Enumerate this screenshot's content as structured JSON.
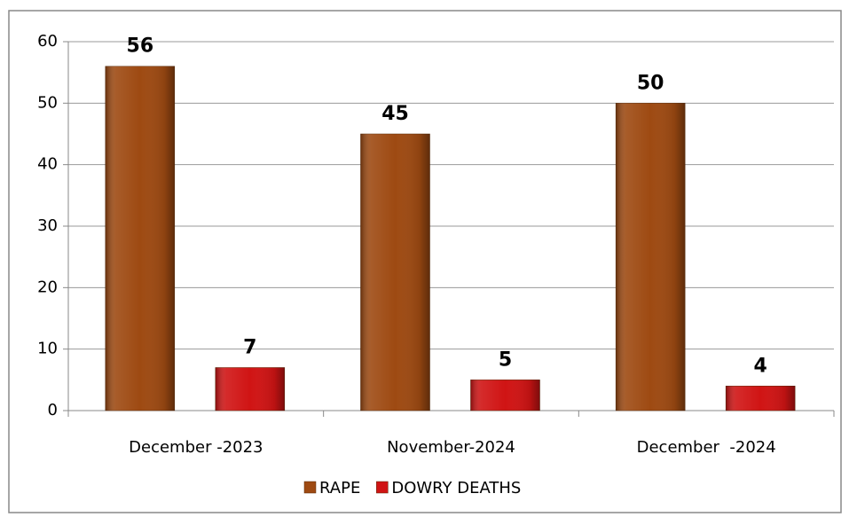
{
  "chart_data": {
    "type": "bar",
    "categories": [
      "December -2023",
      "November-2024",
      "December  -2024"
    ],
    "series": [
      {
        "name": "RAPE",
        "color": "#9e4a12",
        "values": [
          56,
          45,
          50
        ]
      },
      {
        "name": "DOWRY DEATHS",
        "color": "#d01414",
        "values": [
          7,
          5,
          4
        ]
      }
    ],
    "ylim": [
      0,
      60
    ],
    "yticks": [
      0,
      10,
      20,
      30,
      40,
      50,
      60
    ],
    "grid": true,
    "legend": "bottom"
  }
}
